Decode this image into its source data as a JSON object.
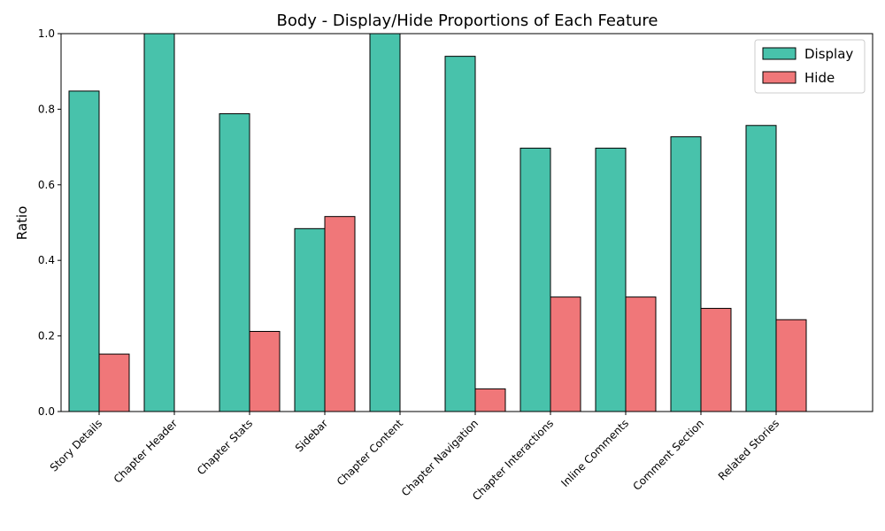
{
  "chart_data": {
    "type": "bar",
    "title": "Body - Display/Hide Proportions of Each Feature",
    "xlabel": "",
    "ylabel": "Ratio",
    "ylim": [
      0,
      1.0
    ],
    "yticks": [
      "0.0",
      "0.2",
      "0.4",
      "0.6",
      "0.8",
      "1.0"
    ],
    "categories": [
      "Story Details",
      "Chapter Header",
      "Chapter Stats",
      "Sidebar",
      "Chapter Content",
      "Chapter Navigation",
      "Chapter Interactions",
      "Inline Comments",
      "Comment Section",
      "Related Stories"
    ],
    "series": [
      {
        "name": "Display",
        "color": "#48c2ab",
        "values": [
          0.848,
          1.0,
          0.788,
          0.484,
          1.0,
          0.94,
          0.697,
          0.697,
          0.727,
          0.757
        ]
      },
      {
        "name": "Hide",
        "color": "#f07779",
        "values": [
          0.152,
          0.0,
          0.212,
          0.516,
          0.0,
          0.06,
          0.303,
          0.303,
          0.273,
          0.243
        ]
      }
    ],
    "legend_position": "top-right",
    "grid": false
  }
}
